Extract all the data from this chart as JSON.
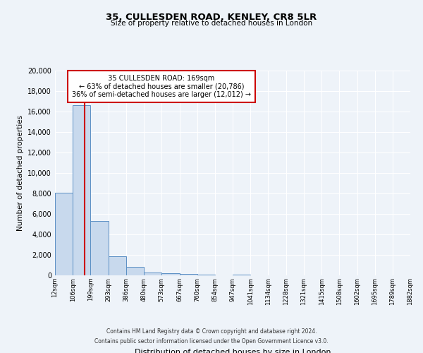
{
  "title_line1": "35, CULLESDEN ROAD, KENLEY, CR8 5LR",
  "title_line2": "Size of property relative to detached houses in London",
  "xlabel": "Distribution of detached houses by size in London",
  "ylabel": "Number of detached properties",
  "bin_labels": [
    "12sqm",
    "106sqm",
    "199sqm",
    "293sqm",
    "386sqm",
    "480sqm",
    "573sqm",
    "667sqm",
    "760sqm",
    "854sqm",
    "947sqm",
    "1041sqm",
    "1134sqm",
    "1228sqm",
    "1321sqm",
    "1415sqm",
    "1508sqm",
    "1602sqm",
    "1695sqm",
    "1789sqm",
    "1882sqm"
  ],
  "bin_edges": [
    12,
    106,
    199,
    293,
    386,
    480,
    573,
    667,
    760,
    854,
    947,
    1041,
    1134,
    1228,
    1321,
    1415,
    1508,
    1602,
    1695,
    1789,
    1882
  ],
  "bar_heights": [
    8100,
    16600,
    5300,
    1850,
    800,
    300,
    200,
    150,
    100,
    0,
    100,
    0,
    0,
    0,
    0,
    0,
    0,
    0,
    0,
    0
  ],
  "bar_color": "#c8d9ed",
  "bar_edge_color": "#5b8fc4",
  "property_size": 169,
  "vline_color": "#cc0000",
  "ylim": [
    0,
    20000
  ],
  "yticks": [
    0,
    2000,
    4000,
    6000,
    8000,
    10000,
    12000,
    14000,
    16000,
    18000,
    20000
  ],
  "annotation_title": "35 CULLESDEN ROAD: 169sqm",
  "annotation_line1": "← 63% of detached houses are smaller (20,786)",
  "annotation_line2": "36% of semi-detached houses are larger (12,012) →",
  "annotation_box_color": "#ffffff",
  "annotation_box_edge": "#cc0000",
  "footer_line1": "Contains HM Land Registry data © Crown copyright and database right 2024.",
  "footer_line2": "Contains public sector information licensed under the Open Government Licence v3.0.",
  "bg_color": "#eef3f9",
  "plot_bg_color": "#eef3f9",
  "grid_color": "#ffffff"
}
